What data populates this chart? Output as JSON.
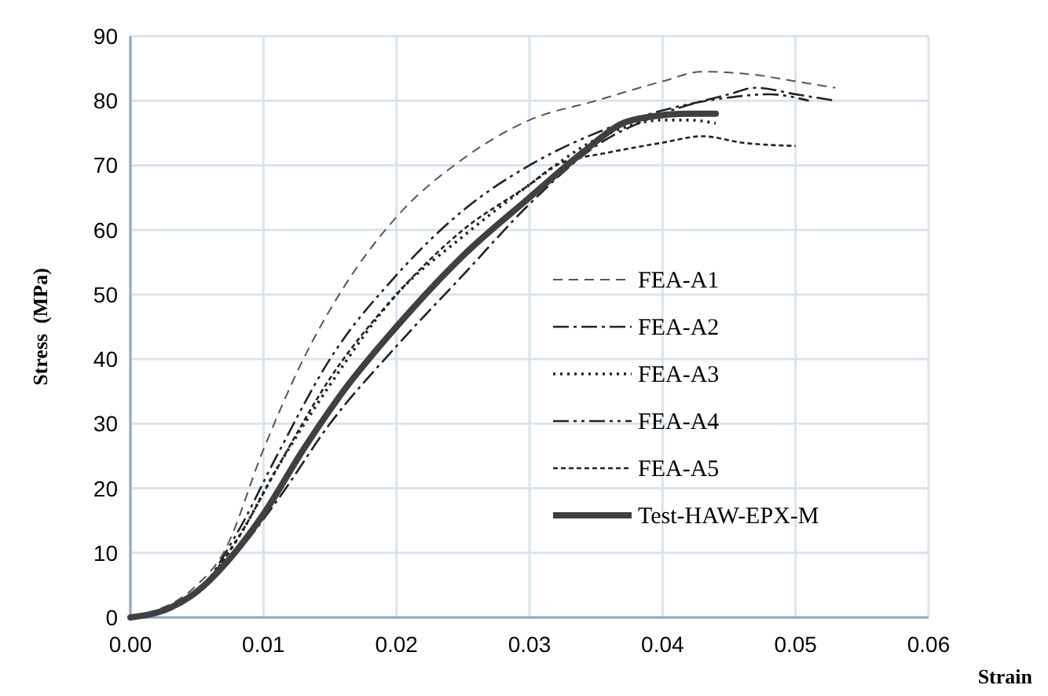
{
  "chart_data": {
    "type": "line",
    "xlabel": "Strain",
    "ylabel": "Stress  (MPa)",
    "xlim": [
      0,
      0.06
    ],
    "ylim": [
      0,
      90
    ],
    "xticks": [
      {
        "value": 0,
        "label": "0.00"
      },
      {
        "value": 0.01,
        "label": "0.01"
      },
      {
        "value": 0.02,
        "label": "0.02"
      },
      {
        "value": 0.03,
        "label": "0.03"
      },
      {
        "value": 0.04,
        "label": "0.04"
      },
      {
        "value": 0.05,
        "label": "0.05"
      },
      {
        "value": 0.06,
        "label": "0.06"
      }
    ],
    "yticks": [
      0,
      10,
      20,
      30,
      40,
      50,
      60,
      70,
      80,
      90
    ],
    "grid": true,
    "legend": "right",
    "series": [
      {
        "name": "FEA-A1",
        "color": "#555555",
        "line_style": "dashed",
        "x": [
          0,
          0.005,
          0.007,
          0.01,
          0.013,
          0.016,
          0.02,
          0.025,
          0.03,
          0.035,
          0.04,
          0.043,
          0.047,
          0.05,
          0.053
        ],
        "values": [
          0,
          5,
          10,
          26,
          40,
          51,
          62,
          71,
          77,
          80,
          83,
          84.5,
          84,
          83,
          82
        ]
      },
      {
        "name": "FEA-A2",
        "color": "#222222",
        "line_style": "dashdot",
        "x": [
          0,
          0.005,
          0.008,
          0.011,
          0.015,
          0.02,
          0.025,
          0.03,
          0.035,
          0.04,
          0.045,
          0.047,
          0.05,
          0.053
        ],
        "values": [
          0,
          4,
          10,
          18,
          30,
          42,
          53,
          64,
          73,
          78,
          81,
          82,
          81,
          80
        ]
      },
      {
        "name": "FEA-A3",
        "color": "#222222",
        "line_style": "dotted",
        "x": [
          0,
          0.005,
          0.008,
          0.011,
          0.015,
          0.02,
          0.025,
          0.03,
          0.035,
          0.04,
          0.042,
          0.044
        ],
        "values": [
          0,
          4,
          12,
          23,
          36,
          50,
          59,
          67,
          74,
          77,
          77,
          76.5
        ]
      },
      {
        "name": "FEA-A4",
        "color": "#222222",
        "line_style": "dashdotdot",
        "x": [
          0,
          0.005,
          0.008,
          0.011,
          0.015,
          0.02,
          0.025,
          0.03,
          0.035,
          0.04,
          0.045,
          0.048,
          0.051
        ],
        "values": [
          0,
          4,
          13,
          25,
          40,
          53,
          63,
          70,
          75,
          78.5,
          80.5,
          81,
          80
        ]
      },
      {
        "name": "FEA-A5",
        "color": "#222222",
        "line_style": "dashed_short",
        "x": [
          0,
          0.005,
          0.008,
          0.011,
          0.015,
          0.02,
          0.025,
          0.03,
          0.032,
          0.036,
          0.04,
          0.043,
          0.046,
          0.05
        ],
        "values": [
          0,
          4,
          12,
          23,
          37,
          50,
          60,
          67,
          70,
          72,
          73.5,
          74.5,
          73.5,
          73
        ]
      },
      {
        "name": "Test-HAW-EPX-M",
        "color": "#404040",
        "line_style": "solid",
        "x": [
          0,
          0.003,
          0.005,
          0.007,
          0.01,
          0.013,
          0.016,
          0.02,
          0.025,
          0.03,
          0.034,
          0.037,
          0.039,
          0.042,
          0.044
        ],
        "values": [
          0,
          1.5,
          4,
          8,
          16,
          26,
          35,
          45,
          56,
          65,
          72,
          76.5,
          77.5,
          78,
          78
        ]
      }
    ]
  }
}
